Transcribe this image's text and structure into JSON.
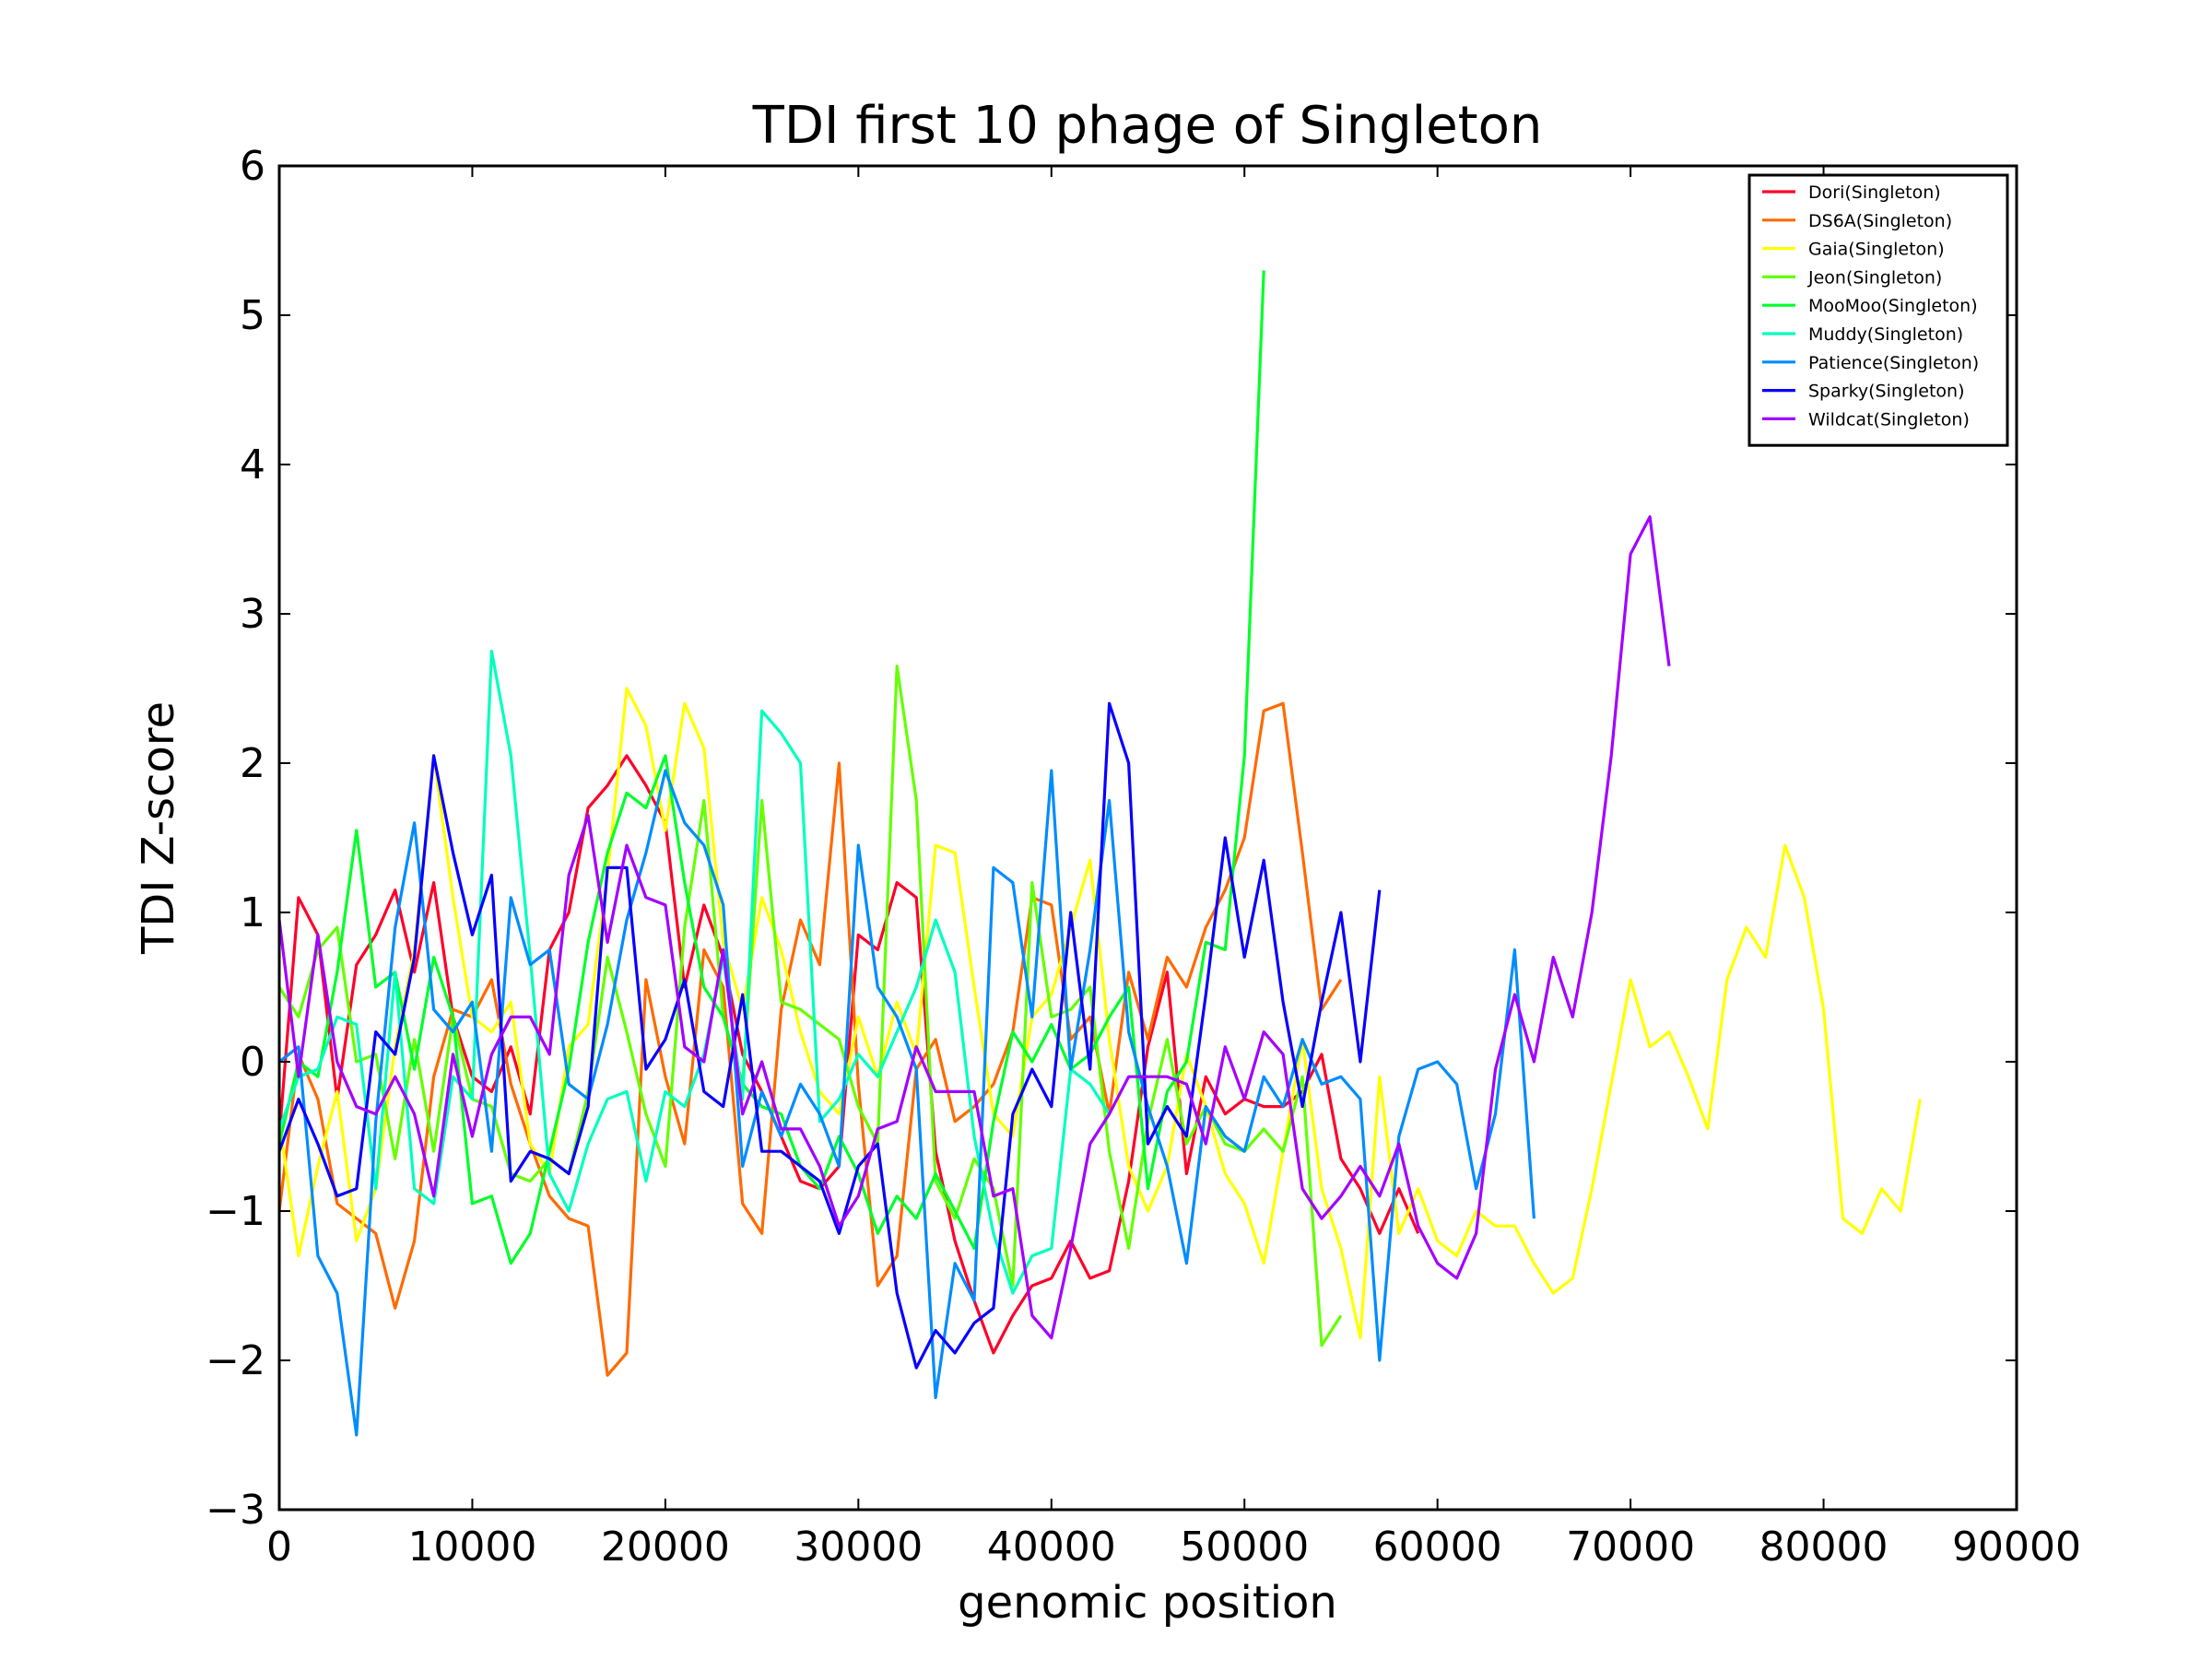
{
  "chart_data": {
    "type": "line",
    "title": "TDI first 10 phage of Singleton",
    "xlabel": "genomic position",
    "ylabel": "TDI Z-score",
    "xlim": [
      0,
      90000
    ],
    "ylim": [
      -3,
      6
    ],
    "xticks": [
      0,
      10000,
      20000,
      30000,
      40000,
      50000,
      60000,
      70000,
      80000,
      90000
    ],
    "yticks": [
      -3,
      -2,
      -1,
      0,
      1,
      2,
      3,
      4,
      5,
      6
    ],
    "ytick_labels": [
      "−3",
      "−2",
      "−1",
      "0",
      "1",
      "2",
      "3",
      "4",
      "5",
      "6"
    ],
    "grid": false,
    "legend_position": "top-right",
    "series": [
      {
        "name": "Dori(Singleton)",
        "color": "#ff0029",
        "x0": 0,
        "step": 1000,
        "values": [
          -0.5,
          1.1,
          0.85,
          -0.25,
          0.65,
          0.85,
          1.15,
          0.6,
          1.2,
          0.3,
          -0.1,
          -0.2,
          0.1,
          -0.35,
          0.75,
          1.0,
          1.7,
          1.85,
          2.05,
          1.85,
          1.6,
          0.5,
          1.05,
          0.7,
          0.05,
          -0.2,
          -0.5,
          -0.8,
          -0.85,
          -0.7,
          0.85,
          0.75,
          1.2,
          1.1,
          -0.6,
          -1.2,
          -1.6,
          -1.95,
          -1.7,
          -1.5,
          -1.45,
          -1.2,
          -1.45,
          -1.4,
          -0.8,
          0.1,
          0.6,
          -0.75,
          -0.1,
          -0.35,
          -0.25,
          -0.3,
          -0.3,
          -0.2,
          0.05,
          -0.65,
          -0.85,
          -1.15,
          -0.85,
          -1.15
        ]
      },
      {
        "name": "DS6A(Singleton)",
        "color": "#ff6a00",
        "x0": 0,
        "step": 1000,
        "values": [
          -1.0,
          0.05,
          -0.25,
          -0.95,
          -1.05,
          -1.15,
          -1.65,
          -1.2,
          -0.1,
          0.35,
          0.3,
          0.55,
          -0.15,
          -0.55,
          -0.9,
          -1.05,
          -1.1,
          -2.1,
          -1.95,
          0.55,
          -0.1,
          -0.55,
          0.75,
          0.5,
          -0.95,
          -1.15,
          0.35,
          0.95,
          0.65,
          2.0,
          -0.15,
          -1.5,
          -1.3,
          -0.05,
          0.15,
          -0.4,
          -0.3,
          -0.15,
          0.2,
          1.1,
          1.05,
          0.15,
          0.3,
          -0.35,
          0.6,
          0.15,
          0.7,
          0.5,
          0.9,
          1.15,
          1.5,
          2.35,
          2.4,
          1.4,
          0.35,
          0.55
        ]
      },
      {
        "name": "Gaia(Singleton)",
        "color": "#ffff00",
        "x0": 0,
        "step": 1000,
        "values": [
          -0.4,
          -1.3,
          -0.7,
          -0.2,
          -1.2,
          -0.85,
          0.1,
          0.75,
          2.05,
          1.1,
          0.3,
          0.2,
          0.4,
          -0.55,
          -0.75,
          0.1,
          0.25,
          1.25,
          2.5,
          2.25,
          1.55,
          2.4,
          2.1,
          0.8,
          0.35,
          1.1,
          0.75,
          0.2,
          -0.2,
          -0.35,
          0.3,
          -0.1,
          0.4,
          0.05,
          1.45,
          1.4,
          0.5,
          -0.35,
          -0.5,
          0.3,
          0.45,
          0.9,
          1.35,
          0.15,
          -0.7,
          -1.0,
          -0.7,
          0.05,
          -0.3,
          -0.75,
          -0.95,
          -1.35,
          -0.6,
          0.15,
          -0.85,
          -1.25,
          -1.85,
          -0.1,
          -1.15,
          -0.85,
          -1.2,
          -1.3,
          -1.0,
          -1.1,
          -1.1,
          -1.35,
          -1.55,
          -1.45,
          -0.85,
          -0.15,
          0.55,
          0.1,
          0.2,
          -0.1,
          -0.45,
          0.55,
          0.9,
          0.7,
          1.45,
          1.1,
          0.35,
          -1.05,
          -1.15,
          -0.85,
          -1.0,
          -0.25
        ]
      },
      {
        "name": "Jeon(Singleton)",
        "color": "#64ff00",
        "x0": 0,
        "step": 1000,
        "values": [
          0.5,
          0.3,
          0.75,
          0.9,
          0.0,
          0.05,
          -0.65,
          0.15,
          -0.6,
          0.3,
          -0.25,
          -0.3,
          -0.75,
          -0.8,
          -0.65,
          -0.75,
          -0.2,
          0.7,
          0.2,
          -0.35,
          -0.7,
          0.9,
          1.75,
          0.3,
          -0.15,
          1.75,
          0.4,
          0.35,
          0.25,
          0.15,
          -0.3,
          -0.55,
          2.65,
          1.75,
          -0.8,
          -1.05,
          -0.65,
          -0.85,
          -1.5,
          1.2,
          0.3,
          0.35,
          0.5,
          -0.6,
          -1.25,
          -0.4,
          0.15,
          -0.55,
          -0.3,
          -0.55,
          -0.6,
          -0.45,
          -0.6,
          -0.1,
          -1.9,
          -1.7
        ]
      },
      {
        "name": "MooMoo(Singleton)",
        "color": "#00ff29",
        "x0": 0,
        "step": 1000,
        "values": [
          -0.55,
          0.0,
          -0.1,
          0.6,
          1.55,
          0.5,
          0.6,
          -0.05,
          0.7,
          0.3,
          -0.95,
          -0.9,
          -1.35,
          -1.15,
          -0.6,
          -0.05,
          0.8,
          1.4,
          1.8,
          1.7,
          2.05,
          1.2,
          0.5,
          0.3,
          -0.15,
          -0.3,
          -0.35,
          -0.7,
          -0.85,
          -0.5,
          -0.75,
          -1.15,
          -0.9,
          -1.05,
          -0.75,
          -1.0,
          -1.25,
          -0.4,
          0.2,
          0.0,
          0.25,
          -0.05,
          0.05,
          0.3,
          0.5,
          -0.85,
          -0.2,
          0.0,
          0.8,
          0.75,
          2.05,
          5.3
        ]
      },
      {
        "name": "Muddy(Singleton)",
        "color": "#00ffbd",
        "x0": 0,
        "step": 1000,
        "values": [
          -0.45,
          -0.1,
          -0.05,
          0.3,
          0.25,
          -0.85,
          0.6,
          -0.85,
          -0.95,
          -0.1,
          -0.25,
          2.75,
          2.05,
          0.7,
          -0.75,
          -1.0,
          -0.55,
          -0.25,
          -0.2,
          -0.8,
          -0.2,
          -0.3,
          0.05,
          0.7,
          -0.25,
          2.35,
          2.2,
          2.0,
          -0.4,
          -0.25,
          0.05,
          -0.1,
          0.2,
          0.5,
          0.95,
          0.6,
          -0.5,
          -1.15,
          -1.55,
          -1.3,
          -1.25,
          -0.05,
          -0.15,
          -0.35
        ]
      },
      {
        "name": "Patience(Singleton)",
        "color": "#008cff",
        "x0": 0,
        "step": 1000,
        "values": [
          0.0,
          0.1,
          -1.3,
          -1.55,
          -2.5,
          -0.4,
          0.9,
          1.6,
          0.35,
          0.2,
          0.4,
          -0.6,
          1.1,
          0.65,
          0.75,
          -0.15,
          -0.25,
          0.25,
          0.95,
          1.4,
          1.95,
          1.6,
          1.45,
          1.05,
          -0.7,
          -0.2,
          -0.5,
          -0.15,
          -0.35,
          -0.7,
          1.45,
          0.5,
          0.3,
          -0.05,
          -2.25,
          -1.35,
          -1.6,
          1.3,
          1.2,
          0.3,
          1.95,
          -0.05,
          0.75,
          1.75,
          0.2,
          -0.3,
          -0.7,
          -1.35,
          -0.3,
          -0.5,
          -0.6,
          -0.1,
          -0.3,
          0.15,
          -0.15,
          -0.1,
          -0.25,
          -2.0,
          -0.5,
          -0.05,
          0.0,
          -0.15,
          -0.85,
          -0.35,
          0.75,
          -1.05
        ]
      },
      {
        "name": "Sparky(Singleton)",
        "color": "#0800ff",
        "x0": 0,
        "step": 1000,
        "values": [
          -0.6,
          -0.25,
          -0.55,
          -0.9,
          -0.85,
          0.2,
          0.05,
          0.7,
          2.05,
          1.4,
          0.85,
          1.25,
          -0.8,
          -0.6,
          -0.65,
          -0.75,
          -0.3,
          1.3,
          1.3,
          -0.05,
          0.15,
          0.55,
          -0.2,
          -0.3,
          0.45,
          -0.6,
          -0.6,
          -0.7,
          -0.8,
          -1.15,
          -0.7,
          -0.55,
          -1.55,
          -2.05,
          -1.8,
          -1.95,
          -1.75,
          -1.65,
          -0.35,
          -0.05,
          -0.3,
          1.0,
          -0.05,
          2.4,
          2.0,
          -0.55,
          -0.3,
          -0.5,
          0.45,
          1.5,
          0.7,
          1.35,
          0.4,
          -0.3,
          0.4,
          1.0,
          0.0,
          1.15
        ]
      },
      {
        "name": "Wildcat(Singleton)",
        "color": "#a300ff",
        "x0": 0,
        "step": 1000,
        "values": [
          0.95,
          -0.1,
          0.85,
          0.0,
          -0.3,
          -0.35,
          -0.1,
          -0.35,
          -0.9,
          0.05,
          -0.5,
          0.05,
          0.3,
          0.3,
          0.05,
          1.25,
          1.65,
          0.8,
          1.45,
          1.1,
          1.05,
          0.1,
          0.0,
          0.75,
          -0.35,
          0.0,
          -0.45,
          -0.45,
          -0.7,
          -1.1,
          -0.9,
          -0.45,
          -0.4,
          0.1,
          -0.2,
          -0.2,
          -0.2,
          -0.9,
          -0.85,
          -1.7,
          -1.85,
          -1.25,
          -0.55,
          -0.35,
          -0.1,
          -0.1,
          -0.1,
          -0.15,
          -0.55,
          0.1,
          -0.25,
          0.2,
          0.05,
          -0.85,
          -1.05,
          -0.9,
          -0.7,
          -0.9,
          -0.55,
          -1.1,
          -1.35,
          -1.45,
          -1.15,
          -0.05,
          0.45,
          0.0,
          0.7,
          0.3,
          1.0,
          2.05,
          3.4,
          3.65,
          2.65
        ]
      }
    ]
  }
}
